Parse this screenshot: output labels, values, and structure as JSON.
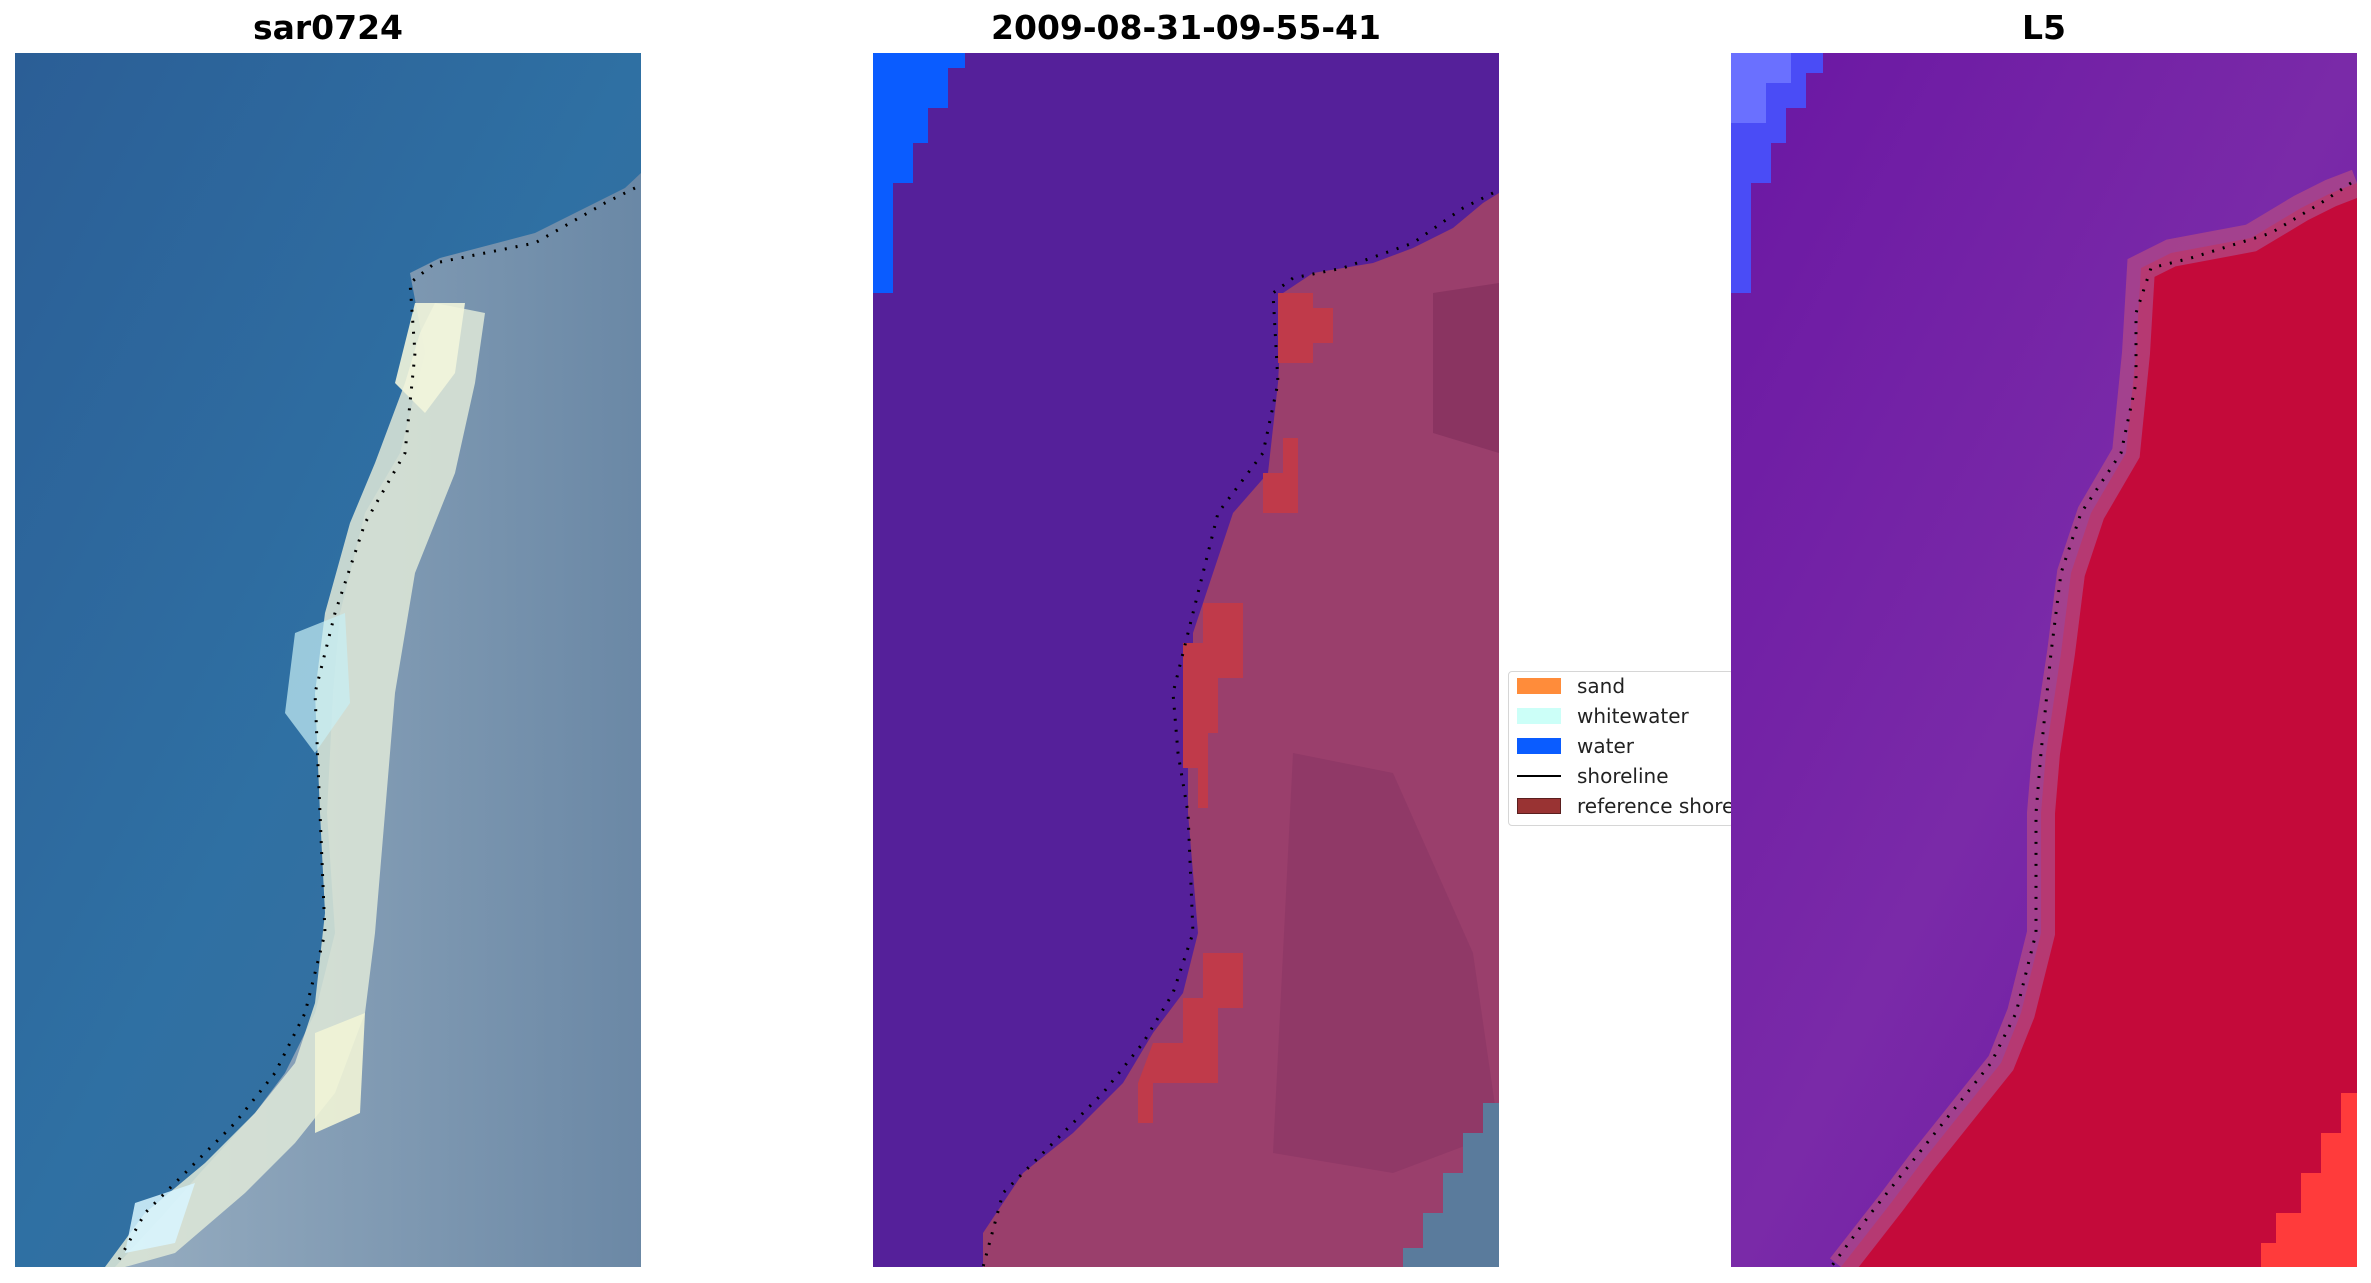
{
  "panels": [
    {
      "title": "sar0724",
      "view": "rgb"
    },
    {
      "title": "2009-08-31-09-55-41",
      "view": "classified"
    },
    {
      "title": "L5",
      "view": "mndwi"
    }
  ],
  "legend": {
    "items": [
      {
        "label": "sand",
        "color": "#ff8c3a",
        "kind": "patch"
      },
      {
        "label": "whitewater",
        "color": "#ccfff8",
        "kind": "patch"
      },
      {
        "label": "water",
        "color": "#0a5cff",
        "kind": "patch"
      },
      {
        "label": "shoreline",
        "color": "#000000",
        "kind": "line"
      },
      {
        "label": "reference shoreline buffer",
        "color": "#993333",
        "kind": "patch"
      }
    ]
  },
  "colors": {
    "sea_blue": "#2f6aa0",
    "deep_purple": "#55209a",
    "land_magenta": "#9a3f6c",
    "buffer_red": "#c03a4a",
    "index_red": "#c40a3a",
    "index_purple": "#6a17a3"
  }
}
